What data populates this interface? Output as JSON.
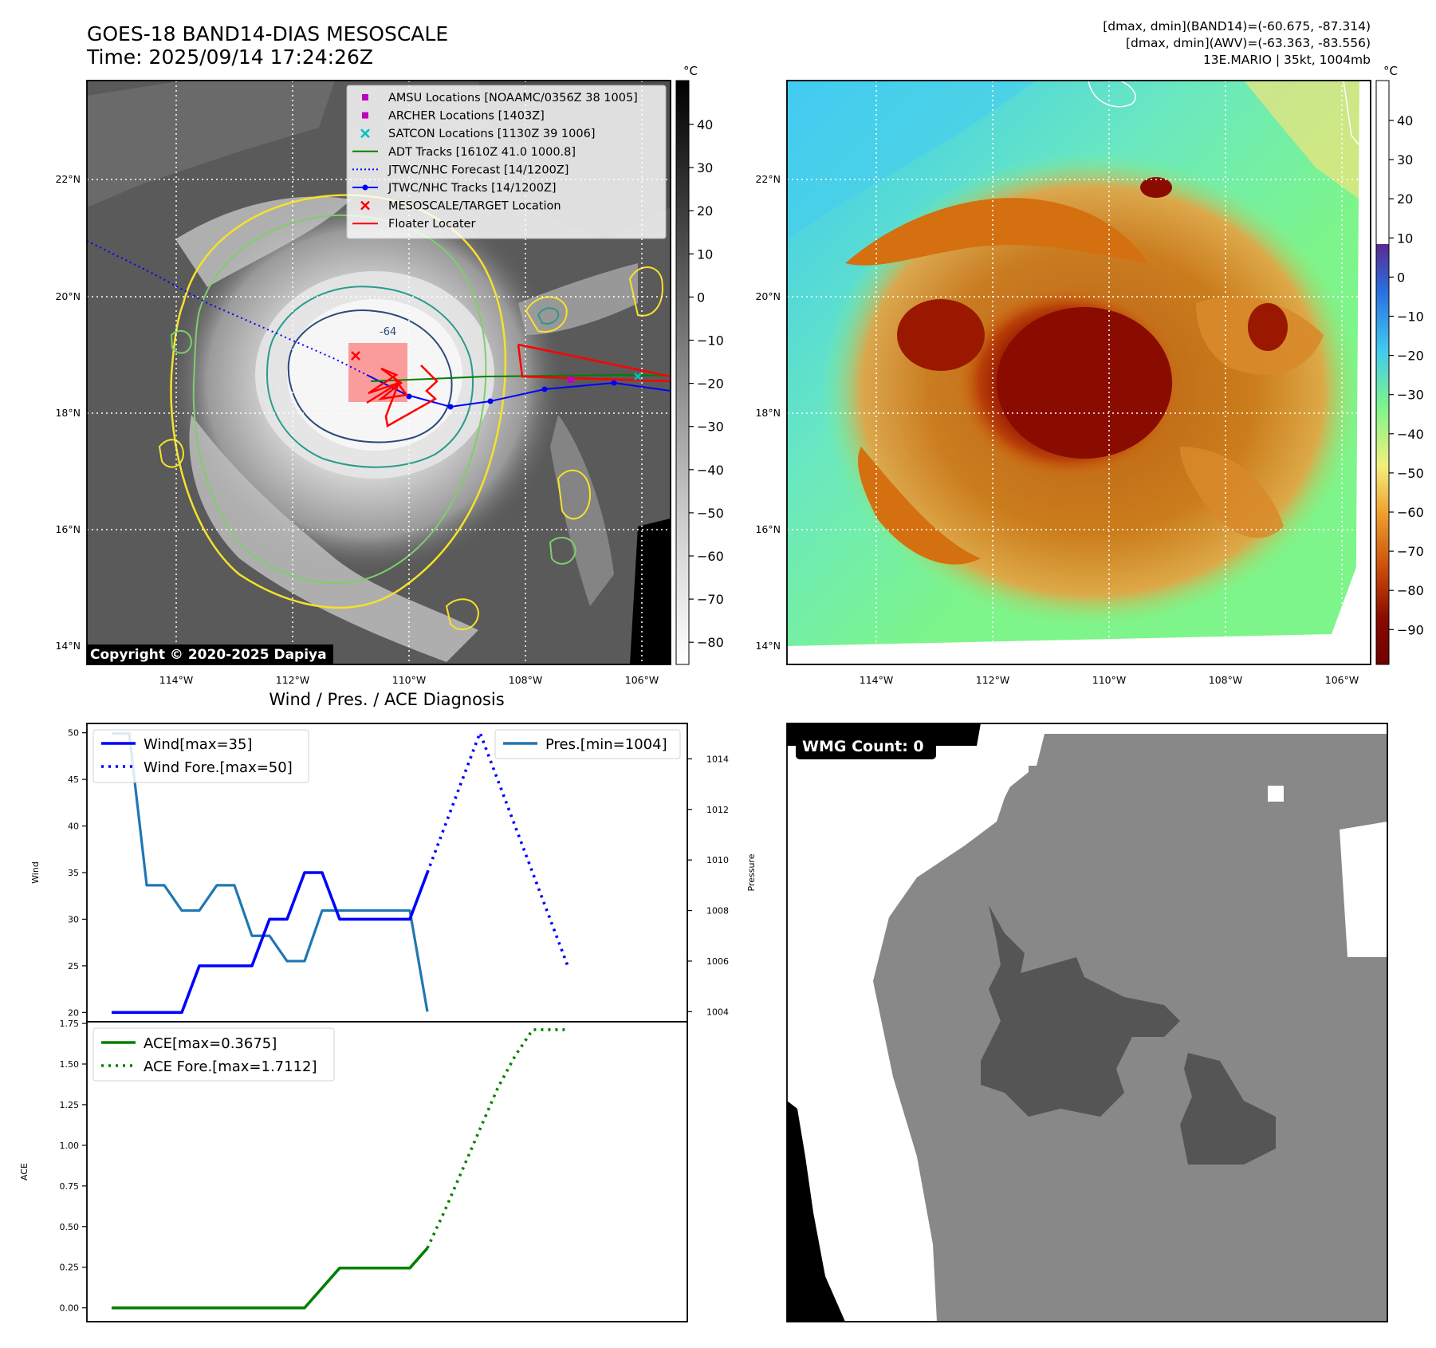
{
  "header": {
    "title_line1": "GOES-18 BAND14-DIAS MESOSCALE",
    "title_line2": "Time: 2025/09/14 17:24:26Z",
    "info_line1": "[dmax, dmin](BAND14)=(-60.675, -87.314)",
    "info_line2": "[dmax, dmin](AWV)=(-63.363, -83.556)",
    "info_line3": "13E.MARIO | 35kt, 1004mb"
  },
  "map_panels": {
    "lat_labels": [
      "22°N",
      "20°N",
      "18°N",
      "16°N",
      "14°N"
    ],
    "lon_labels": [
      "114°W",
      "112°W",
      "110°W",
      "108°W",
      "106°W"
    ],
    "copyright": "Copyright © 2020-2025 Dapiya",
    "contour_label": "-64",
    "colors": {
      "ir_bg": "#5a5a5a",
      "cloud_gray": "#b8b8b8",
      "yellow_contour": "#f5e22a",
      "green_contour": "#7dcf6a",
      "teal_contour": "#2a9a8a",
      "navy_contour": "#2b4a7a",
      "wv_bg": "#7df58a",
      "wv_sky": "#5ad0f5",
      "wv_cloud": "#d4700f",
      "wv_core": "#8a0b00"
    }
  },
  "map_legend": {
    "items": [
      {
        "label": "AMSU Locations [NOAAMC/0356Z 38 1005]",
        "marker": "square",
        "color": "#c000c0"
      },
      {
        "label": "ARCHER Locations [1403Z]",
        "marker": "square",
        "color": "#c000c0"
      },
      {
        "label": "SATCON Locations [1130Z 39 1006]",
        "marker": "x",
        "color": "#00c0c0"
      },
      {
        "label": "ADT Tracks [1610Z 41.0 1000.8]",
        "marker": "line",
        "color": "#008000"
      },
      {
        "label": "JTWC/NHC Forecast [14/1200Z]",
        "marker": "dotted",
        "color": "#0000ff"
      },
      {
        "label": "JTWC/NHC Tracks [14/1200Z]",
        "marker": "line-dot",
        "color": "#0000ff"
      },
      {
        "label": "MESOSCALE/TARGET Location",
        "marker": "x",
        "color": "#ff0000"
      },
      {
        "label": "Floater Locater",
        "marker": "line",
        "color": "#ff0000"
      }
    ]
  },
  "colorbar_ir": {
    "unit": "°C",
    "ticks": [
      "40",
      "30",
      "20",
      "10",
      "0",
      "−10",
      "−20",
      "−30",
      "−40",
      "−50",
      "−60",
      "−70",
      "−80"
    ]
  },
  "colorbar_wv": {
    "unit": "°C",
    "ticks": [
      "40",
      "30",
      "20",
      "10",
      "0",
      "−10",
      "−20",
      "−30",
      "−40",
      "−50",
      "−60",
      "−70",
      "−80",
      "−90"
    ]
  },
  "diagnosis": {
    "title": "Wind / Pres. / ACE Diagnosis",
    "wind_ylabel": "Wind",
    "pres_ylabel": "Pressure",
    "ace_ylabel": "ACE",
    "legend_wind": "Wind[max=35]",
    "legend_wind_fore": "Wind Fore.[max=50]",
    "legend_pres": "Pres.[min=1004]",
    "legend_ace": "ACE[max=0.3675]",
    "legend_ace_fore": "ACE Fore.[max=1.7112]"
  },
  "wmg": {
    "label": "WMG Count: 0",
    "colors": {
      "light": "#888888",
      "dark": "#555555",
      "white": "#ffffff",
      "black": "#000000"
    }
  },
  "chart_data": [
    {
      "type": "line",
      "panel": "wind",
      "ylim": [
        19,
        51
      ],
      "yticks": [
        20,
        25,
        30,
        35,
        40,
        45,
        50
      ],
      "series": [
        {
          "name": "Wind[max=35]",
          "color": "#0000ff",
          "style": "solid",
          "values": [
            20,
            20,
            20,
            20,
            20,
            25,
            25,
            25,
            25,
            30,
            30,
            35,
            35,
            30,
            30,
            30,
            30,
            30,
            35
          ]
        },
        {
          "name": "Wind Fore.[max=50]",
          "color": "#0000ff",
          "style": "dotted",
          "offset": 18,
          "values": [
            35,
            40,
            45,
            50,
            45,
            40,
            35,
            30,
            25
          ]
        }
      ]
    },
    {
      "type": "line",
      "panel": "pressure",
      "ylim": [
        1003.6,
        1015.4
      ],
      "yticks": [
        1004,
        1006,
        1008,
        1010,
        1012,
        1014
      ],
      "series": [
        {
          "name": "Pres.[min=1004]",
          "color": "#1f77b4",
          "style": "solid",
          "values": [
            1015,
            1015,
            1009,
            1009,
            1008,
            1008,
            1009,
            1009,
            1007,
            1007,
            1006,
            1006,
            1008,
            1008,
            1008,
            1008,
            1008,
            1008,
            1004
          ]
        }
      ]
    },
    {
      "type": "line",
      "panel": "ace",
      "ylim": [
        -0.085,
        1.76
      ],
      "yticks": [
        0.0,
        0.25,
        0.5,
        0.75,
        1.0,
        1.25,
        1.5,
        1.75
      ],
      "series": [
        {
          "name": "ACE[max=0.3675]",
          "color": "#008000",
          "style": "solid",
          "values": [
            0,
            0,
            0,
            0,
            0,
            0,
            0,
            0,
            0,
            0,
            0,
            0,
            0.1225,
            0.245,
            0.245,
            0.245,
            0.245,
            0.245,
            0.3675
          ]
        },
        {
          "name": "ACE Fore.[max=1.7112]",
          "color": "#008000",
          "style": "dotted",
          "offset": 18,
          "values": [
            0.3675,
            0.6,
            0.85,
            1.1,
            1.35,
            1.55,
            1.7112,
            1.7112,
            1.7112
          ]
        }
      ]
    }
  ]
}
